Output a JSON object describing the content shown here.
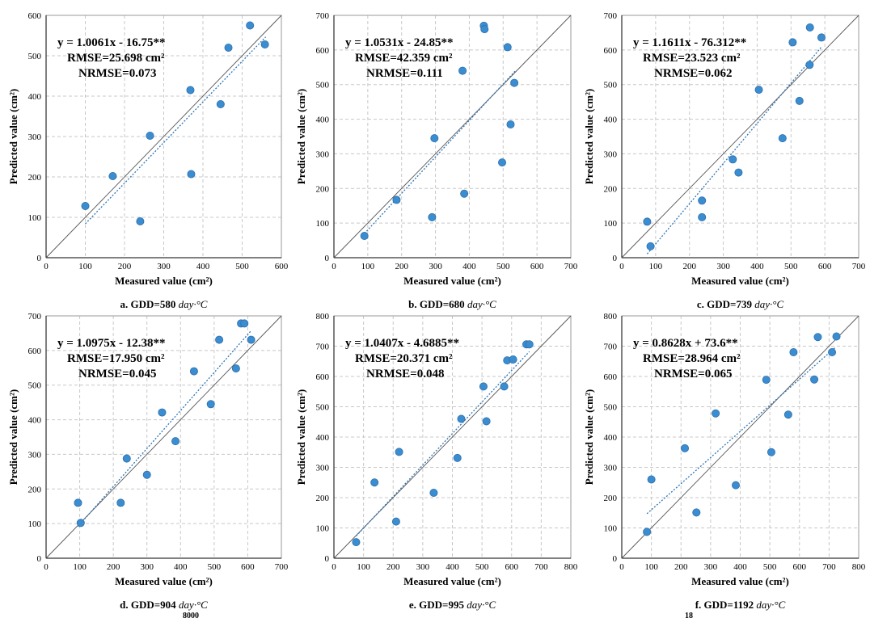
{
  "charts": [
    {
      "type": "scatter",
      "caption_prefix": "a. GDD=580 ",
      "caption_unit": "day·°C",
      "xlabel": "Measured value (cm²)",
      "ylabel": "Predicted value (cm²)",
      "xlim": [
        0,
        600
      ],
      "ylim": [
        0,
        600
      ],
      "xticks": [
        0,
        100,
        200,
        300,
        400,
        500,
        600
      ],
      "yticks": [
        0,
        100,
        200,
        300,
        400,
        500,
        600
      ],
      "grid": true,
      "equation": "y = 1.0061x - 16.75**",
      "rmse": "RMSE=25.698 cm²",
      "nrmse": "NRMSE=0.073",
      "fit": {
        "slope": 1.0061,
        "intercept": -16.75,
        "x_range": [
          100,
          560
        ]
      },
      "points": [
        [
          100,
          128
        ],
        [
          170,
          202
        ],
        [
          240,
          90
        ],
        [
          265,
          302
        ],
        [
          368,
          415
        ],
        [
          370,
          207
        ],
        [
          445,
          380
        ],
        [
          465,
          520
        ],
        [
          520,
          575
        ],
        [
          558,
          528
        ]
      ]
    },
    {
      "type": "scatter",
      "caption_prefix": "b. GDD=680 ",
      "caption_unit": "day·°C",
      "xlabel": "Measured value (cm²)",
      "ylabel": "Predicted value (cm²)",
      "xlim": [
        0,
        700
      ],
      "ylim": [
        0,
        700
      ],
      "xticks": [
        0,
        100,
        200,
        300,
        400,
        500,
        600,
        700
      ],
      "yticks": [
        0,
        100,
        200,
        300,
        400,
        500,
        600,
        700
      ],
      "grid": true,
      "equation": "y = 1.0531x - 24.85**",
      "rmse": "RMSE=42.359 cm²",
      "nrmse": "NRMSE=0.111",
      "fit": {
        "slope": 1.0531,
        "intercept": -24.85,
        "x_range": [
          90,
          535
        ]
      },
      "points": [
        [
          90,
          63
        ],
        [
          185,
          167
        ],
        [
          290,
          117
        ],
        [
          297,
          345
        ],
        [
          385,
          185
        ],
        [
          380,
          540
        ],
        [
          443,
          670
        ],
        [
          445,
          660
        ],
        [
          497,
          275
        ],
        [
          513,
          608
        ],
        [
          522,
          385
        ],
        [
          533,
          505
        ]
      ]
    },
    {
      "type": "scatter",
      "caption_prefix": "c. GDD=739 ",
      "caption_unit": "day·°C",
      "xlabel": "Measured value (cm²)",
      "ylabel": "Predicted value (cm²)",
      "xlim": [
        0,
        700
      ],
      "ylim": [
        0,
        700
      ],
      "xticks": [
        0,
        100,
        200,
        300,
        400,
        500,
        600,
        700
      ],
      "yticks": [
        0,
        100,
        200,
        300,
        400,
        500,
        600,
        700
      ],
      "grid": true,
      "equation": "y = 1.1611x - 76.312**",
      "rmse": "RMSE=23.523 cm²",
      "nrmse": "NRMSE=0.062",
      "fit": {
        "slope": 1.1611,
        "intercept": -76.312,
        "x_range": [
          75,
          590
        ]
      },
      "points": [
        [
          75,
          104
        ],
        [
          85,
          33
        ],
        [
          237,
          165
        ],
        [
          237,
          117
        ],
        [
          328,
          284
        ],
        [
          345,
          246
        ],
        [
          405,
          485
        ],
        [
          475,
          345
        ],
        [
          505,
          622
        ],
        [
          525,
          453
        ],
        [
          555,
          557
        ],
        [
          556,
          665
        ],
        [
          590,
          636
        ]
      ]
    },
    {
      "type": "scatter",
      "caption_prefix": "d. GDD=904 ",
      "caption_unit": "day·°C",
      "xlabel": "Measured value (cm²)",
      "ylabel": "Predicted value (cm²)",
      "xlim": [
        0,
        700
      ],
      "ylim": [
        0,
        700
      ],
      "xticks": [
        0,
        100,
        200,
        300,
        400,
        500,
        600,
        700
      ],
      "yticks": [
        0,
        100,
        200,
        300,
        400,
        500,
        600,
        700
      ],
      "grid": true,
      "equation": "y = 1.0975x - 12.38**",
      "rmse": "RMSE=17.950 cm²",
      "nrmse": "NRMSE=0.045",
      "fit": {
        "slope": 1.0975,
        "intercept": -12.38,
        "x_range": [
          95,
          610
        ]
      },
      "points": [
        [
          95,
          160
        ],
        [
          103,
          102
        ],
        [
          222,
          160
        ],
        [
          240,
          288
        ],
        [
          300,
          241
        ],
        [
          345,
          421
        ],
        [
          385,
          338
        ],
        [
          440,
          540
        ],
        [
          490,
          445
        ],
        [
          515,
          631
        ],
        [
          565,
          548
        ],
        [
          580,
          678
        ],
        [
          590,
          678
        ],
        [
          610,
          631
        ]
      ]
    },
    {
      "type": "scatter",
      "caption_prefix": "e. GDD=995 ",
      "caption_unit": "day·°C",
      "xlabel": "Measured value (cm²)",
      "ylabel": "Predicted value (cm²)",
      "xlim": [
        0,
        800
      ],
      "ylim": [
        0,
        800
      ],
      "xticks": [
        0,
        100,
        200,
        300,
        400,
        500,
        600,
        700,
        800
      ],
      "yticks": [
        0,
        100,
        200,
        300,
        400,
        500,
        600,
        700,
        800
      ],
      "grid": true,
      "equation": "y = 1.0407x - 4.6885**",
      "rmse": "RMSE=20.371 cm²",
      "nrmse": "NRMSE=0.048",
      "fit": {
        "slope": 1.0407,
        "intercept": -4.6885,
        "x_range": [
          75,
          660
        ]
      },
      "points": [
        [
          75,
          53
        ],
        [
          137,
          250
        ],
        [
          210,
          121
        ],
        [
          220,
          351
        ],
        [
          337,
          216
        ],
        [
          417,
          331
        ],
        [
          430,
          460
        ],
        [
          505,
          567
        ],
        [
          515,
          452
        ],
        [
          585,
          653
        ],
        [
          575,
          567
        ],
        [
          605,
          656
        ],
        [
          650,
          706
        ],
        [
          660,
          706
        ]
      ]
    },
    {
      "type": "scatter",
      "caption_prefix": "f. GDD=1192 ",
      "caption_unit": "day·°C",
      "xlabel": "Measured value (cm²)",
      "ylabel": "Predicted value (cm²)",
      "xlim": [
        0,
        800
      ],
      "ylim": [
        0,
        800
      ],
      "xticks": [
        0,
        100,
        200,
        300,
        400,
        500,
        600,
        700,
        800
      ],
      "yticks": [
        0,
        100,
        200,
        300,
        400,
        500,
        600,
        700,
        800
      ],
      "grid": true,
      "equation": "y = 0.8628x + 73.6**",
      "rmse": "RMSE=28.964 cm²",
      "nrmse": "NRMSE=0.065",
      "fit": {
        "slope": 0.8628,
        "intercept": 73.6,
        "x_range": [
          85,
          720
        ]
      },
      "points": [
        [
          85,
          87
        ],
        [
          100,
          260
        ],
        [
          213,
          363
        ],
        [
          252,
          151
        ],
        [
          317,
          478
        ],
        [
          385,
          241
        ],
        [
          488,
          589
        ],
        [
          505,
          350
        ],
        [
          562,
          474
        ],
        [
          580,
          680
        ],
        [
          650,
          590
        ],
        [
          662,
          730
        ],
        [
          710,
          680
        ],
        [
          725,
          732
        ]
      ]
    }
  ],
  "cut_off": [
    "8000",
    "18"
  ]
}
